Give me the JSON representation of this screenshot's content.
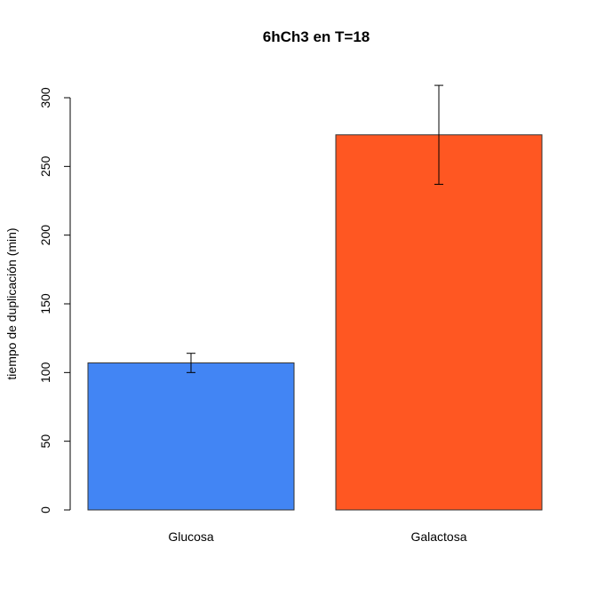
{
  "chart_data": {
    "type": "bar",
    "title": "6hCh3 en T=18",
    "xlabel": "",
    "ylabel": "tiempo de duplicación (min)",
    "categories": [
      "Glucosa",
      "Galactosa"
    ],
    "values": [
      107,
      273
    ],
    "error_low": [
      100,
      237
    ],
    "error_high": [
      114,
      309
    ],
    "colors": [
      "#4285F4",
      "#FF5722"
    ],
    "yticks": [
      0,
      50,
      100,
      150,
      200,
      250,
      300
    ],
    "ylim": [
      0,
      310
    ],
    "grid": false,
    "legend": "none"
  }
}
